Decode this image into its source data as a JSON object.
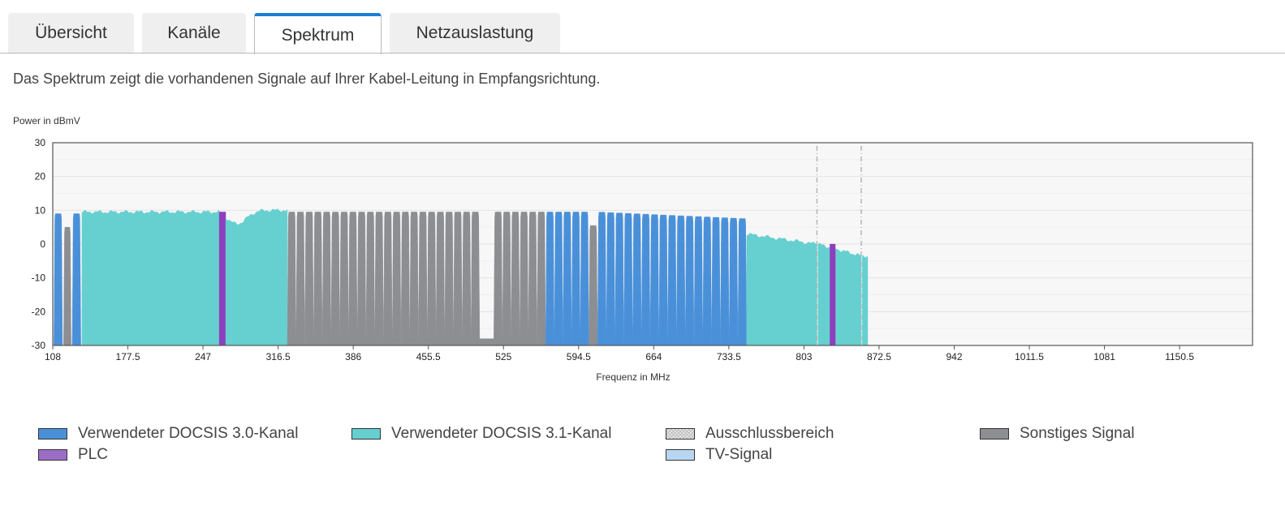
{
  "tabs": [
    {
      "label": "Übersicht",
      "active": false
    },
    {
      "label": "Kanäle",
      "active": false
    },
    {
      "label": "Spektrum",
      "active": true
    },
    {
      "label": "Netzauslastung",
      "active": false
    }
  ],
  "intro_text": "Das Spektrum zeigt die vorhandenen Signale auf Ihrer Kabel-Leitung in Empfangsrichtung.",
  "colors": {
    "tab_accent": "#1a7fd4",
    "docsis30": "#4a90d9",
    "docsis31": "#66d0d0",
    "exclusion": "#d9d9d9",
    "other": "#8c8e92",
    "plc": "#8e3fbf",
    "plc_legend": "#9b6dc6",
    "tv": "#b8d6f2"
  },
  "legend": [
    {
      "label": "Verwendeter DOCSIS 3.0-Kanal",
      "color": "#4a90d9",
      "pattern": "solid"
    },
    {
      "label": "Verwendeter DOCSIS 3.1-Kanal",
      "color": "#66d0d0",
      "pattern": "solid"
    },
    {
      "label": "Ausschlussbereich",
      "color": "#e0e0e0",
      "pattern": "hatch"
    },
    {
      "label": "Sonstiges Signal",
      "color": "#8c8e92",
      "pattern": "solid"
    },
    {
      "label": "PLC",
      "color": "#9b6dc6",
      "pattern": "solid"
    },
    {
      "label": "TV-Signal",
      "color": "#b8d6f2",
      "pattern": "solid"
    }
  ],
  "chart_data": {
    "type": "area",
    "ylabel": "Power in dBmV",
    "xlabel": "Frequenz in MHz",
    "xlim": [
      108,
      1218
    ],
    "ylim": [
      -30,
      30
    ],
    "x_ticks": [
      "108",
      "177.5",
      "247",
      "316.5",
      "386",
      "455.5",
      "525",
      "594.5",
      "664",
      "733.5",
      "803",
      "872.5",
      "942",
      "1011.5",
      "1081",
      "1150.5"
    ],
    "y_ticks": [
      "30",
      "20",
      "10",
      "0",
      "-10",
      "-20",
      "-30"
    ],
    "grid": true,
    "segments": [
      {
        "kind": "docsis30",
        "x_start": 109,
        "x_end": 117,
        "level_db": 9,
        "channel_mhz": 8
      },
      {
        "kind": "other",
        "x_start": 118,
        "x_end": 125,
        "level_db": 5,
        "channel_mhz": 7
      },
      {
        "kind": "docsis30",
        "x_start": 126,
        "x_end": 134,
        "level_db": 9,
        "channel_mhz": 8
      },
      {
        "kind": "docsis31",
        "x_start": 135,
        "x_end": 262,
        "level_start_db": 9.5,
        "level_end_db": 9.5,
        "shape": "flat"
      },
      {
        "kind": "plc",
        "x_start": 262,
        "x_end": 268,
        "level_db": 9.5
      },
      {
        "kind": "docsis31",
        "x_start": 268,
        "x_end": 325,
        "level_start_db": 6,
        "level_end_db": 10,
        "shape": "dip"
      },
      {
        "kind": "other",
        "x_start": 325,
        "x_end": 503,
        "level_db": 9.5,
        "channel_mhz": 8
      },
      {
        "kind": "other",
        "x_start": 503,
        "x_end": 516,
        "level_db": -28
      },
      {
        "kind": "other",
        "x_start": 516,
        "x_end": 564,
        "level_db": 9.5,
        "channel_mhz": 8
      },
      {
        "kind": "docsis30",
        "x_start": 564,
        "x_end": 604,
        "level_db": 9.5,
        "channel_mhz": 8
      },
      {
        "kind": "other",
        "x_start": 604,
        "x_end": 612,
        "level_db": 5.5,
        "channel_mhz": 8
      },
      {
        "kind": "docsis30",
        "x_start": 612,
        "x_end": 750,
        "level_start_db": 9.5,
        "level_end_db": 7.5,
        "channel_mhz": 8
      },
      {
        "kind": "docsis31",
        "x_start": 750,
        "x_end": 815,
        "level_start_db": 3,
        "level_end_db": 0,
        "shape": "flat"
      },
      {
        "kind": "docsis31",
        "x_start": 816,
        "x_end": 856,
        "level_start_db": 0,
        "level_end_db": -3.5,
        "shape": "flat"
      },
      {
        "kind": "plc",
        "x_start": 827,
        "x_end": 832,
        "level_db": 0
      },
      {
        "kind": "docsis31",
        "x_start": 857,
        "x_end": 862,
        "level_start_db": -3.5,
        "level_end_db": -4,
        "shape": "flat"
      }
    ],
    "exclusion_markers_mhz": [
      815,
      856
    ]
  }
}
